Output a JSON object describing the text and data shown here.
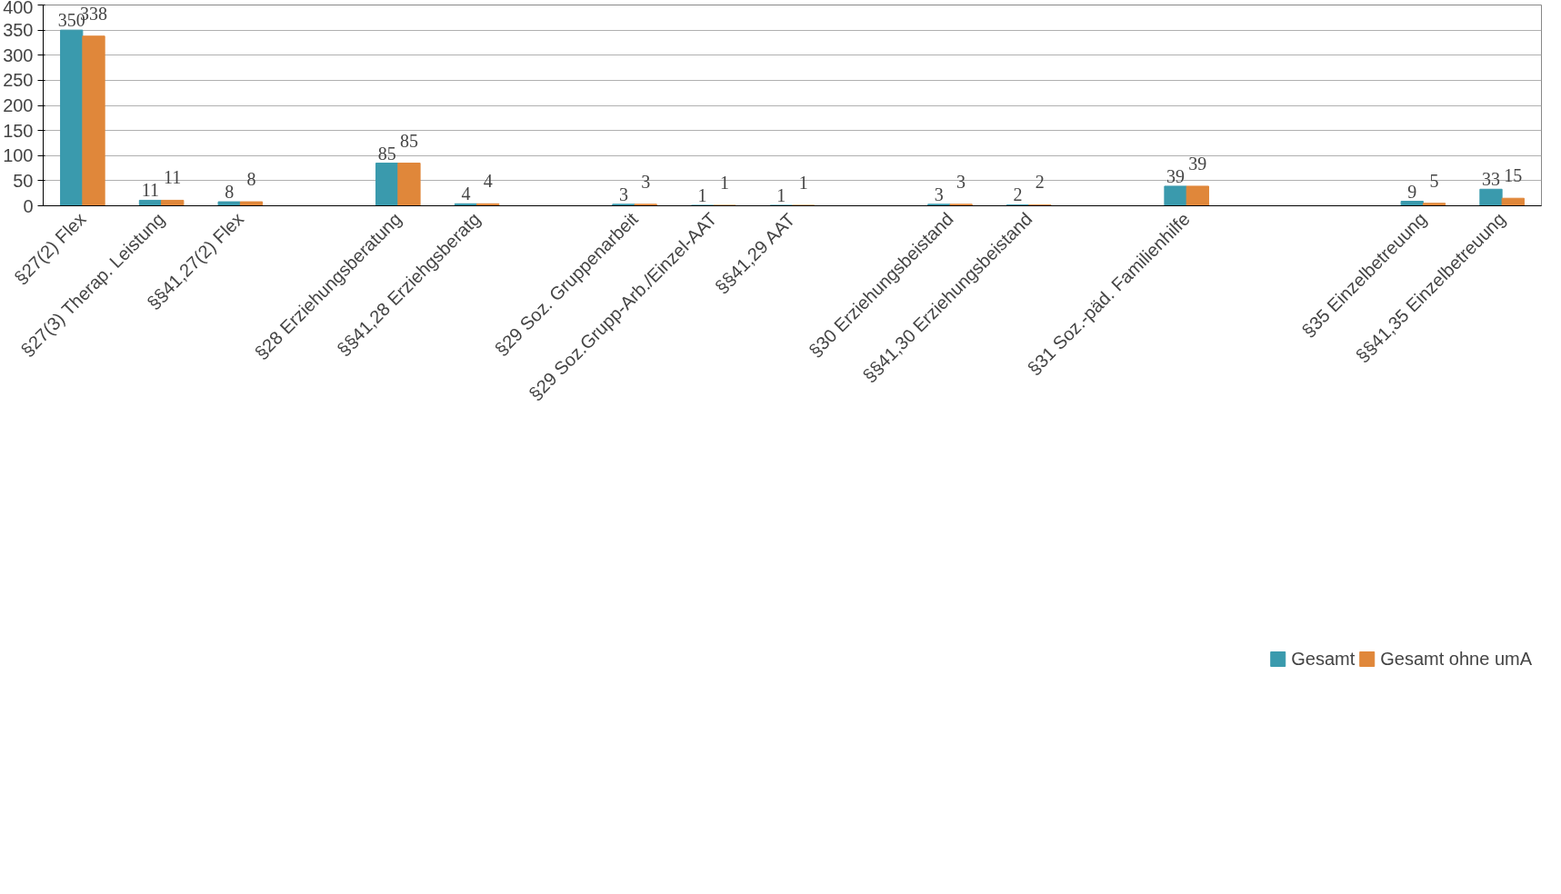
{
  "chart_data": {
    "type": "bar",
    "categories": [
      "§27(2) Flex",
      "§27(3) Therap. Leistung",
      "§§41,27(2) Flex",
      null,
      "§28 Erziehungsberatung",
      "§§41,28 Erziehgsberatg",
      null,
      "§29 Soz. Gruppenarbeit",
      "§29 Soz.Grupp-Arb./Einzel-AAT",
      "§§41,29 AAT",
      null,
      "§30 Erziehungsbeistand",
      "§§41,30 Erziehungsbeistand",
      null,
      "§31 Soz.-päd. Familienhilfe",
      null,
      null,
      "§35 Einzelbetreuung",
      "§§41,35 Einzelbetreuung"
    ],
    "series": [
      {
        "name": "Gesamt",
        "color": "#3a9aad",
        "values": [
          350,
          11,
          8,
          null,
          85,
          4,
          null,
          3,
          1,
          1,
          null,
          3,
          2,
          null,
          39,
          null,
          null,
          9,
          33
        ]
      },
      {
        "name": "Gesamt ohne umA",
        "color": "#e0873a",
        "values": [
          338,
          11,
          8,
          null,
          85,
          4,
          null,
          3,
          1,
          1,
          null,
          3,
          2,
          null,
          39,
          null,
          null,
          5,
          15
        ]
      }
    ],
    "ylim": [
      0,
      400
    ],
    "yticks": [
      0,
      50,
      100,
      150,
      200,
      250,
      300,
      350,
      400
    ],
    "grid": "y",
    "legend": "bottom",
    "data_labels": true
  }
}
